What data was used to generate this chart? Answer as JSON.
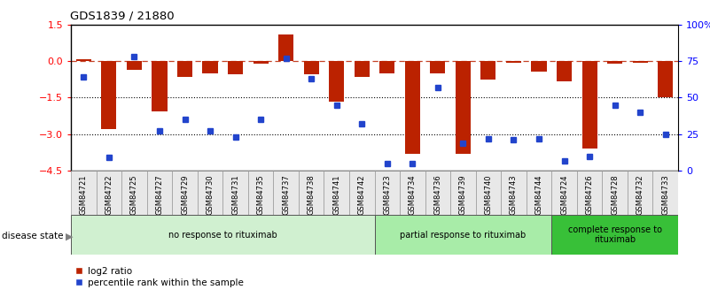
{
  "title": "GDS1839 / 21880",
  "samples": [
    "GSM84721",
    "GSM84722",
    "GSM84725",
    "GSM84727",
    "GSM84729",
    "GSM84730",
    "GSM84731",
    "GSM84735",
    "GSM84737",
    "GSM84738",
    "GSM84741",
    "GSM84742",
    "GSM84723",
    "GSM84734",
    "GSM84736",
    "GSM84739",
    "GSM84740",
    "GSM84743",
    "GSM84744",
    "GSM84724",
    "GSM84726",
    "GSM84728",
    "GSM84732",
    "GSM84733"
  ],
  "log2_ratio": [
    0.08,
    -2.8,
    -0.35,
    -2.05,
    -0.65,
    -0.5,
    -0.55,
    -0.12,
    1.1,
    -0.55,
    -1.65,
    -0.65,
    -0.5,
    -3.8,
    -0.5,
    -3.8,
    -0.75,
    -0.08,
    -0.45,
    -0.85,
    -3.6,
    -0.12,
    -0.06,
    -1.5
  ],
  "percentile": [
    64,
    9,
    78,
    27,
    35,
    27,
    23,
    35,
    77,
    63,
    45,
    32,
    5,
    5,
    57,
    19,
    22,
    21,
    22,
    7,
    10,
    45,
    40,
    25
  ],
  "groups": [
    {
      "label": "no response to rituximab",
      "start": 0,
      "end": 12,
      "color": "#d0f0d0"
    },
    {
      "label": "partial response to rituximab",
      "start": 12,
      "end": 19,
      "color": "#a8eca8"
    },
    {
      "label": "complete response to\nrituximab",
      "start": 19,
      "end": 24,
      "color": "#38c038"
    }
  ],
  "bar_color": "#bb2200",
  "dot_color": "#2244cc",
  "ylim_left": [
    -4.5,
    1.5
  ],
  "ylim_right": [
    0,
    100
  ],
  "yticks_left": [
    1.5,
    0,
    -1.5,
    -3.0,
    -4.5
  ],
  "yticks_right": [
    100,
    75,
    50,
    25,
    0
  ],
  "ytick_labels_right": [
    "100%",
    "75",
    "50",
    "25",
    "0"
  ],
  "hlines": [
    -1.5,
    -3.0
  ],
  "zero_line": 0,
  "background_color": "#ffffff"
}
